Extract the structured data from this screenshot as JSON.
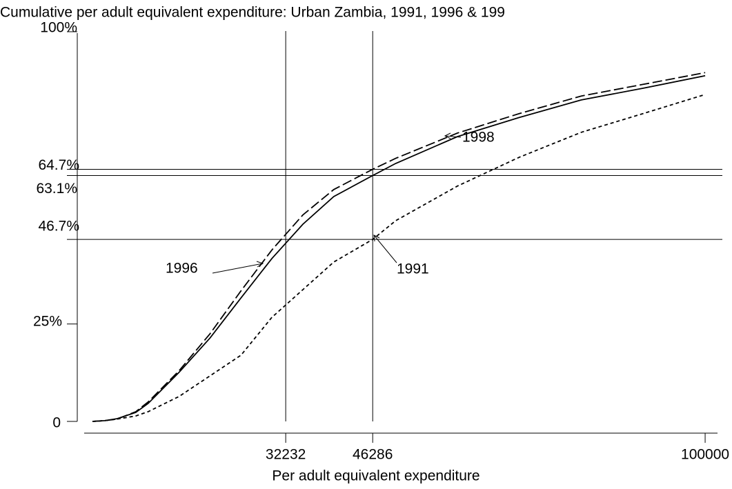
{
  "chart_data": {
    "type": "line",
    "title": "Cumulative per adult equivalent expenditure: Urban Zambia, 1991, 1996 & 199",
    "x_label": "Per adult equivalent expenditure",
    "x": [
      1000,
      3000,
      5000,
      8000,
      10000,
      15000,
      20000,
      25000,
      30000,
      35000,
      40000,
      46286,
      50000,
      60000,
      70000,
      80000,
      90000,
      100000
    ],
    "series": [
      {
        "name": "1991",
        "color": "#000000",
        "dash": "short",
        "values": [
          0,
          0.2,
          0.6,
          1.4,
          2.5,
          6.4,
          11.7,
          17,
          26.7,
          33.8,
          40.9,
          46.7,
          51.5,
          60.4,
          67.8,
          74.2,
          79,
          83.9
        ]
      },
      {
        "name": "1996",
        "color": "#000000",
        "dash": "long",
        "values": [
          0,
          0.2,
          0.6,
          2.5,
          5,
          13,
          22.5,
          33.5,
          44,
          53,
          59.5,
          64.7,
          67.5,
          74,
          79,
          83.5,
          86.5,
          89.5
        ]
      },
      {
        "name": "1998",
        "color": "#000000",
        "dash": "solid",
        "values": [
          0,
          0.2,
          0.7,
          2.3,
          4.6,
          12.6,
          21.4,
          31.7,
          41.8,
          50.6,
          57.7,
          63.1,
          66.2,
          73.1,
          78,
          82.5,
          85.5,
          88.7
        ]
      }
    ],
    "xlim": [
      0,
      102000
    ],
    "xticks": [
      32232,
      46286,
      100000
    ],
    "ylim": [
      0,
      100
    ],
    "yticks": [
      0,
      {
        "value": 25,
        "label": "25%"
      },
      {
        "value": 46.7,
        "label": "46.7%"
      },
      {
        "value": 63.1,
        "label": "63.1%"
      },
      {
        "value": 64.7,
        "label": "64.7%"
      },
      {
        "value": 100,
        "label": "100%"
      }
    ],
    "hlines": [
      46.7,
      63.1,
      64.7
    ],
    "vlines": [
      32232,
      46286
    ],
    "annotations": [
      "1998",
      "1996",
      "1991"
    ]
  }
}
